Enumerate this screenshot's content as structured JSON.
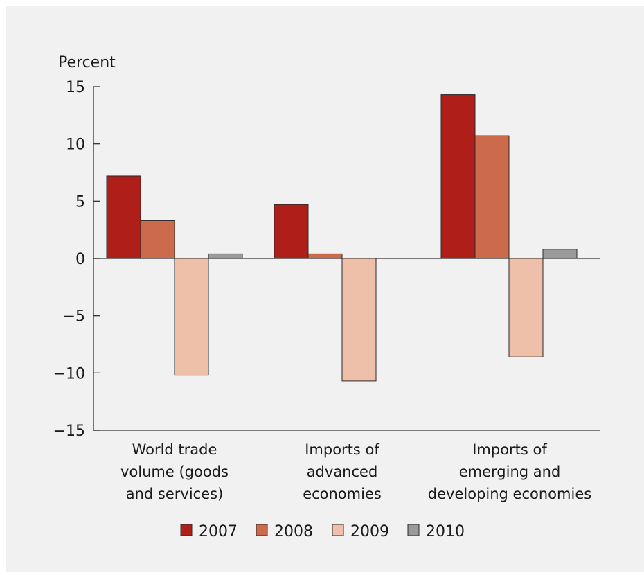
{
  "chart_data": {
    "type": "bar",
    "y_unit_label": "Percent",
    "categories": [
      [
        "World trade",
        "volume (goods",
        "and services)"
      ],
      [
        "Imports of",
        "advanced",
        "economies"
      ],
      [
        "Imports of",
        "emerging and",
        "developing economies"
      ]
    ],
    "series": [
      {
        "name": "2007",
        "color": "#b01e1a",
        "values": [
          7.2,
          4.7,
          14.3
        ]
      },
      {
        "name": "2008",
        "color": "#cc6a4c",
        "values": [
          3.3,
          0.4,
          10.7
        ]
      },
      {
        "name": "2009",
        "color": "#efc0a9",
        "values": [
          -10.2,
          -10.7,
          -8.6
        ]
      },
      {
        "name": "2010",
        "color": "#9a9a9a",
        "values": [
          0.4,
          0.0,
          0.8
        ]
      }
    ],
    "ylim": [
      -15,
      15
    ],
    "yticks": [
      15,
      10,
      5,
      0,
      -5,
      -10,
      -15
    ],
    "ytick_labels": [
      "15",
      "10",
      "5",
      "0",
      "−5",
      "−10",
      "−15"
    ],
    "grid": false,
    "legend_position": "bottom-center"
  }
}
